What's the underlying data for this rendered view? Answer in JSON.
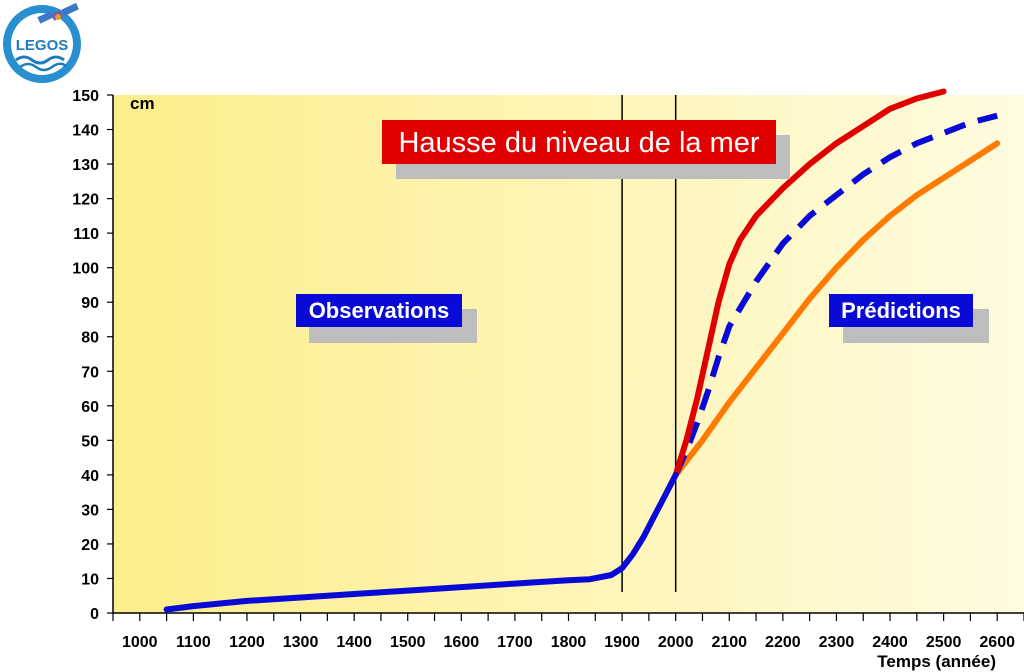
{
  "logo": {
    "text": "LEGOS"
  },
  "chart_data": {
    "type": "line",
    "title": "Hausse du niveau de la mer",
    "ylabel": "cm",
    "xlabel": "Temps (année)",
    "ylim": [
      0,
      150
    ],
    "xlim": [
      950,
      2650
    ],
    "yticks": [
      0,
      10,
      20,
      30,
      40,
      50,
      60,
      70,
      80,
      90,
      100,
      110,
      120,
      130,
      140,
      150
    ],
    "xticks": [
      1000,
      1100,
      1200,
      1300,
      1400,
      1500,
      1600,
      1700,
      1800,
      1900,
      2000,
      2100,
      2200,
      2300,
      2400,
      2500,
      2600
    ],
    "region_labels": {
      "left": "Observations",
      "right": "Prédictions"
    },
    "vertical_markers": [
      1900,
      2000
    ],
    "grid": false,
    "colors": {
      "background_start": "#fcee8a",
      "background_end": "#fffbe0",
      "observations": "#0a0ad6",
      "high": "#e00000",
      "mid": "#0a0ad6",
      "low": "#ff7a00",
      "banner": "#e00000",
      "label": "#0a0ad6",
      "shadow": "#bdbdbd"
    },
    "series": [
      {
        "key": "observations",
        "style": "solid",
        "x": [
          1050,
          1100,
          1200,
          1300,
          1400,
          1500,
          1600,
          1700,
          1750,
          1800,
          1840,
          1880,
          1900,
          1920,
          1940,
          1960,
          1980,
          2000
        ],
        "y": [
          1,
          2,
          3.5,
          4.5,
          5.5,
          6.5,
          7.5,
          8.5,
          9,
          9.5,
          9.8,
          11,
          13,
          17,
          22,
          28,
          34,
          40
        ]
      },
      {
        "key": "high",
        "style": "solid",
        "x": [
          2000,
          2020,
          2040,
          2060,
          2080,
          2100,
          2120,
          2150,
          2200,
          2250,
          2300,
          2350,
          2400,
          2450,
          2500
        ],
        "y": [
          40,
          50,
          62,
          76,
          90,
          101,
          108,
          115,
          123,
          130,
          136,
          141,
          146,
          149,
          151
        ]
      },
      {
        "key": "mid",
        "style": "dashed",
        "x": [
          2000,
          2020,
          2040,
          2060,
          2080,
          2100,
          2150,
          2200,
          2250,
          2300,
          2350,
          2400,
          2450,
          2500,
          2550,
          2600
        ],
        "y": [
          40,
          47,
          55,
          64,
          74,
          83,
          96,
          107,
          115,
          121,
          127,
          132,
          136,
          139,
          142,
          144
        ]
      },
      {
        "key": "low",
        "style": "solid",
        "x": [
          2000,
          2050,
          2100,
          2150,
          2200,
          2250,
          2300,
          2350,
          2400,
          2450,
          2500,
          2550,
          2600
        ],
        "y": [
          40,
          50,
          61,
          71,
          81,
          91,
          100,
          108,
          115,
          121,
          126,
          131,
          136
        ]
      }
    ]
  }
}
